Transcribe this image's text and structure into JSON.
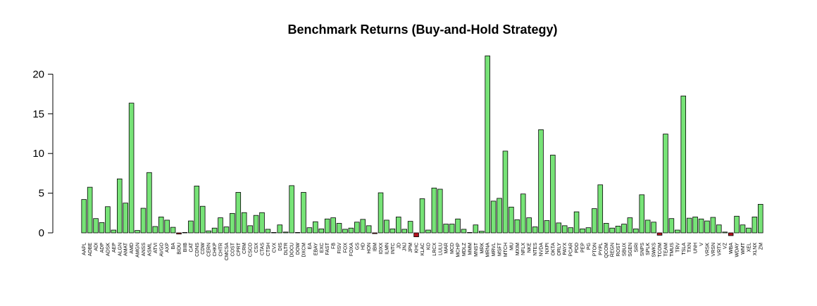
{
  "chart_data": {
    "type": "bar",
    "title": "Benchmark Returns (Buy-and-Hold Strategy)",
    "xlabel": "",
    "ylabel": "",
    "ylim": [
      -0.6,
      23
    ],
    "yticks": [
      0,
      5,
      10,
      15,
      20
    ],
    "grid": false,
    "positive_color": "#77e377",
    "negative_color": "#b3121e",
    "categories": [
      "AAPL",
      "ADBE",
      "ADI",
      "ADP",
      "ADSK",
      "AEP",
      "ALGN",
      "AMAT",
      "AMD",
      "AMGN",
      "ANSS",
      "ASML",
      "ATVI",
      "AVGO",
      "AXP",
      "BA",
      "BIDU",
      "BIIB",
      "CAT",
      "CDNS",
      "CDW",
      "CERN",
      "CHKP",
      "CHTR",
      "CMCSA",
      "COST",
      "CPRT",
      "CRM",
      "CSCO",
      "CSX",
      "CTAS",
      "CTSH",
      "CVX",
      "DIS",
      "DLTR",
      "DOCU",
      "DOW",
      "DXCM",
      "EA",
      "EBAY",
      "EXC",
      "FAST",
      "FB",
      "FISV",
      "FOX",
      "FOXA",
      "GS",
      "HD",
      "HON",
      "IBM",
      "IDXX",
      "ILMN",
      "INTC",
      "JD",
      "JNJ",
      "JPM",
      "KHC",
      "KLAC",
      "KO",
      "LRCX",
      "LULU",
      "MAR",
      "MCD",
      "MCHP",
      "MDLZ",
      "MMM",
      "MNST",
      "MRK",
      "MRNA",
      "MRVL",
      "MSFT",
      "MTCH",
      "MU",
      "MXIM",
      "NFLX",
      "NKE",
      "NTES",
      "NVDA",
      "NXPI",
      "OKTA",
      "ORLY",
      "PAYX",
      "PCAR",
      "PDD",
      "PEP",
      "PG",
      "PTON",
      "PYPL",
      "QCOM",
      "REGN",
      "ROST",
      "SBUX",
      "SGEN",
      "SIRI",
      "SNPS",
      "SPLK",
      "SWKS",
      "TCOM",
      "TEAM",
      "TMUS",
      "TRV",
      "TSLA",
      "TXN",
      "UNH",
      "V",
      "VRSK",
      "VRSN",
      "VRTX",
      "VZ",
      "WBA",
      "WDAY",
      "WMT",
      "XEL",
      "XLNX",
      "ZM"
    ],
    "values": [
      4.2,
      5.75,
      1.8,
      1.3,
      3.3,
      0.35,
      6.8,
      3.75,
      16.35,
      0.3,
      3.1,
      7.6,
      0.8,
      2.0,
      1.6,
      0.7,
      -0.15,
      0.05,
      1.5,
      5.9,
      3.35,
      0.25,
      0.6,
      1.9,
      0.75,
      2.45,
      5.1,
      2.55,
      0.9,
      2.2,
      2.55,
      0.45,
      0.05,
      1.0,
      0.1,
      5.95,
      0.05,
      5.1,
      0.65,
      1.4,
      0.5,
      1.75,
      1.9,
      1.2,
      0.45,
      0.6,
      1.35,
      1.7,
      0.9,
      -0.1,
      5.05,
      1.6,
      0.5,
      2.0,
      0.45,
      1.45,
      -0.5,
      4.3,
      0.35,
      5.65,
      5.5,
      1.1,
      1.1,
      1.75,
      0.45,
      0.05,
      1.0,
      0.2,
      22.3,
      4.0,
      4.35,
      10.3,
      3.25,
      1.65,
      4.9,
      1.9,
      0.75,
      13.0,
      1.55,
      9.8,
      1.25,
      0.9,
      0.65,
      2.65,
      0.5,
      0.65,
      3.05,
      6.05,
      1.2,
      0.6,
      0.85,
      1.1,
      1.9,
      0.5,
      4.8,
      1.6,
      1.35,
      -0.3,
      12.45,
      1.8,
      0.35,
      17.25,
      1.85,
      2.0,
      1.75,
      1.5,
      1.95,
      1.0,
      0.1,
      -0.35,
      2.1,
      1.0,
      0.6,
      2.0,
      3.6
    ]
  }
}
